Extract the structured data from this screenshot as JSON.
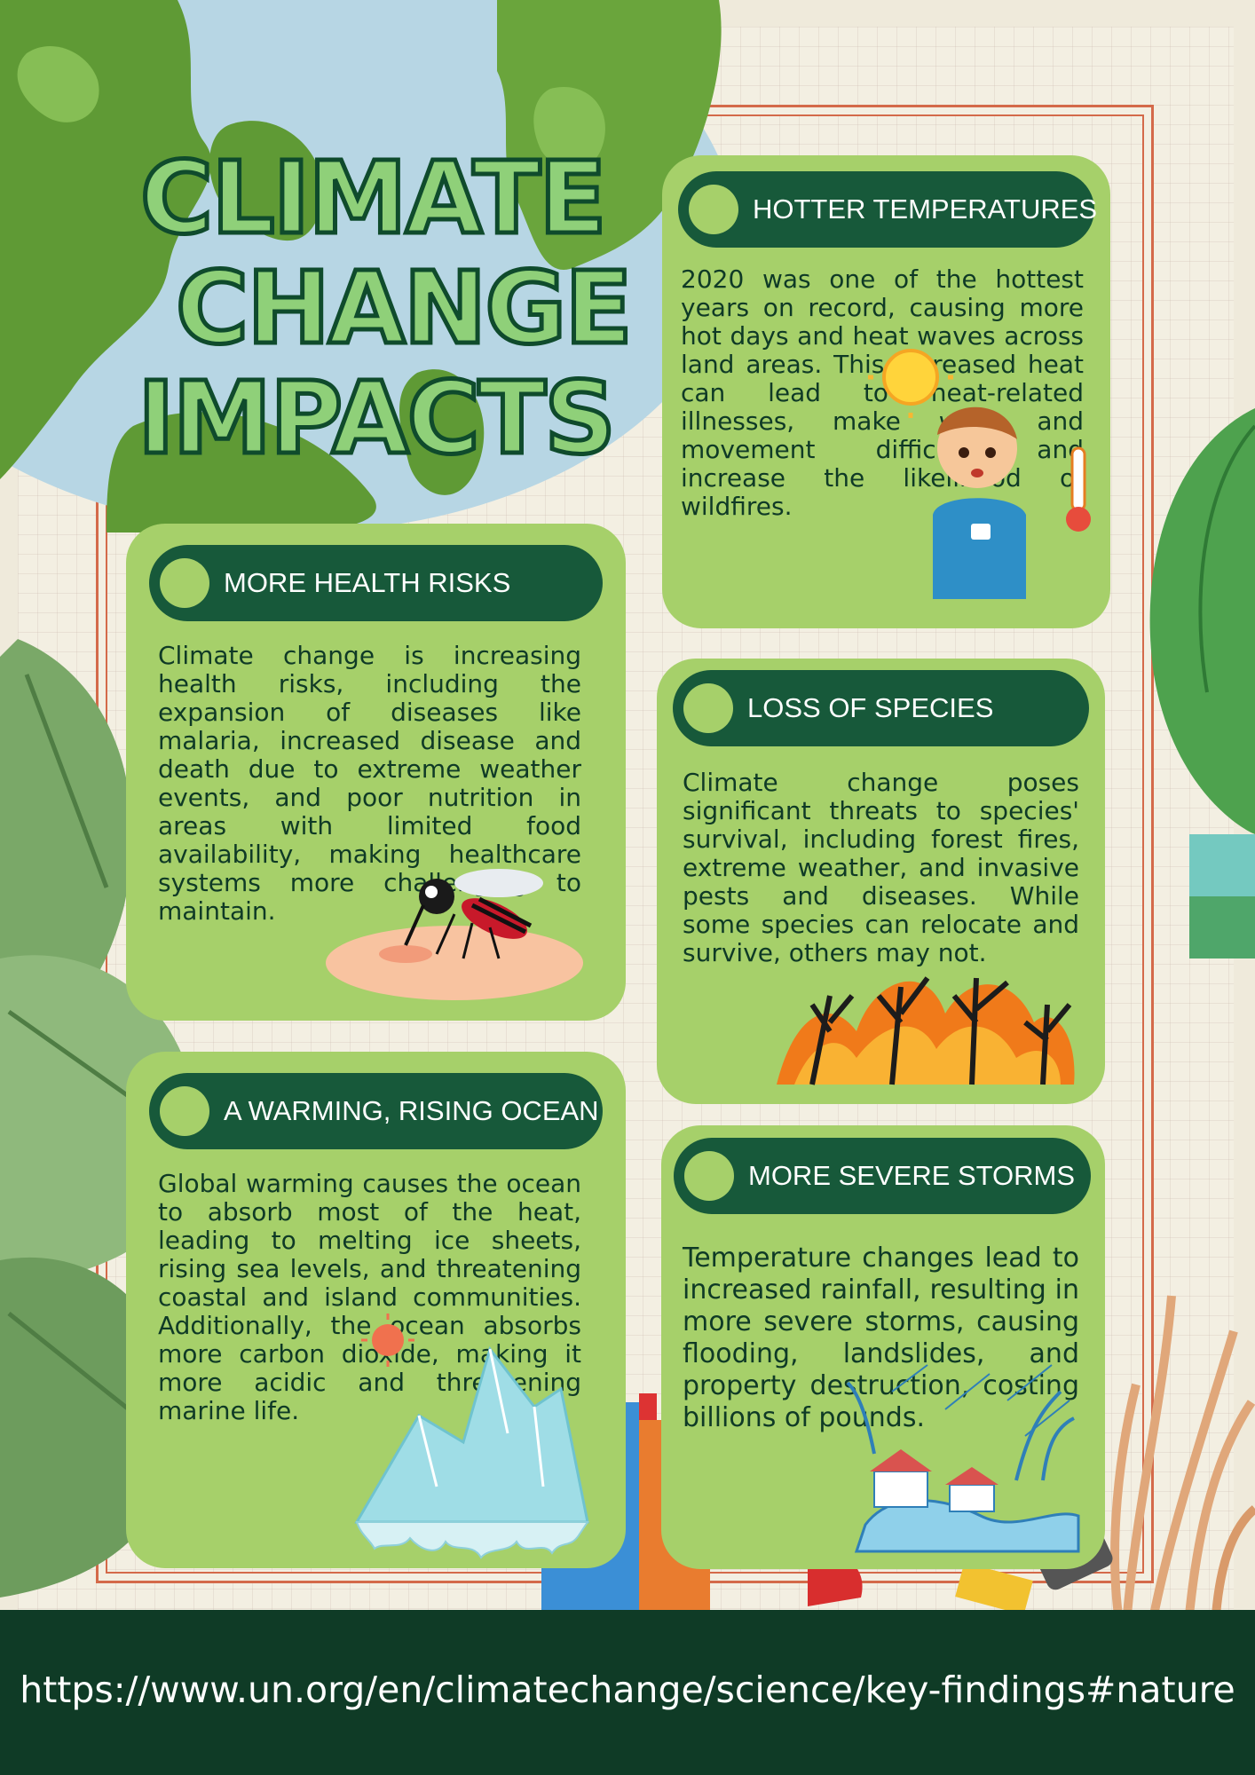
{
  "colors": {
    "card_bg": "#a6d06a",
    "pill_bg": "#17593a",
    "title_fill": "#8fd079",
    "title_stroke": "#0f4b2c",
    "footer_bg": "#0f3b26",
    "frame_red": "#d46a4a"
  },
  "title": {
    "line1": "CLIMATE",
    "line2": "CHANGE",
    "line3": "IMPACTS"
  },
  "cards": {
    "hotter": {
      "heading": "HOTTER TEMPERATURES",
      "body": "2020 was one of the hottest years on record, causing more hot days and heat waves across land areas. This increased heat can lead to heat-related illnesses, make work and movement difficult, and increase the likelihood of wildfires.",
      "icons": [
        "sun-icon",
        "sweating-boy-icon",
        "thermometer-icon"
      ]
    },
    "health": {
      "heading": "MORE HEALTH RISKS",
      "body": "Climate change is increasing health risks, including the expansion of diseases like malaria, increased disease and death due to extreme weather events, and poor nutrition in areas with limited food availability, making healthcare systems more challenging to maintain.",
      "icons": [
        "mosquito-icon"
      ]
    },
    "species": {
      "heading": "LOSS OF  SPECIES",
      "body": "Climate change poses significant threats to species' survival, including forest fires, extreme weather, and invasive pests and diseases. While some species can relocate and survive, others may not.",
      "icons": [
        "forest-fire-icon"
      ]
    },
    "ocean": {
      "heading": "A WARMING, RISING OCEAN",
      "body": "Global warming causes the ocean to absorb most of the heat, leading to melting ice sheets, rising sea levels, and threatening coastal and island communities. Additionally, the ocean absorbs more carbon dioxide, making it more acidic and threatening marine life.",
      "icons": [
        "sun-icon",
        "melting-iceberg-icon"
      ]
    },
    "storms": {
      "heading": "MORE SEVERE STORMS",
      "body": "Temperature changes lead to increased rainfall, resulting in more severe storms, causing flooding, landslides, and property destruction, costing billions of pounds.",
      "icons": [
        "storm-flood-icon"
      ]
    }
  },
  "footer": {
    "url": "https://www.un.org/en/climatechange/science/key-findings#nature"
  }
}
